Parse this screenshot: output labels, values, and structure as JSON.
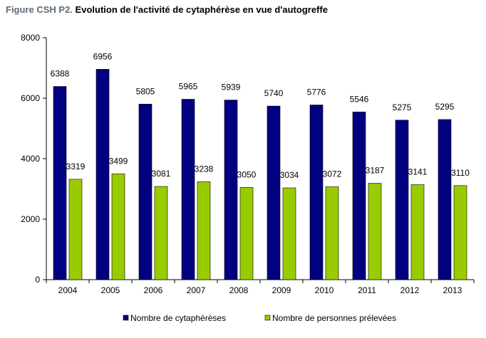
{
  "figure": {
    "title_prefix": "Figure CSH P2.",
    "title_main": "Evolution de l'activité de cytaphérèse en vue d'autogreffe"
  },
  "chart_data": {
    "type": "bar",
    "categories": [
      "2004",
      "2005",
      "2006",
      "2007",
      "2008",
      "2009",
      "2010",
      "2011",
      "2012",
      "2013"
    ],
    "series": [
      {
        "name": "Nombre de cytaphérèses",
        "color": "#000080",
        "values": [
          6388,
          6956,
          5805,
          5965,
          5939,
          5740,
          5776,
          5546,
          5275,
          5295
        ]
      },
      {
        "name": "Nombre de personnes prélevées",
        "color": "#99cc00",
        "values": [
          3319,
          3499,
          3081,
          3238,
          3050,
          3034,
          3072,
          3187,
          3141,
          3110
        ]
      }
    ],
    "ylim": [
      0,
      8000
    ],
    "yticks": [
      "0",
      "2000",
      "4000",
      "6000",
      "8000"
    ],
    "grid": false,
    "legend": "bottom",
    "data_labels": true
  }
}
